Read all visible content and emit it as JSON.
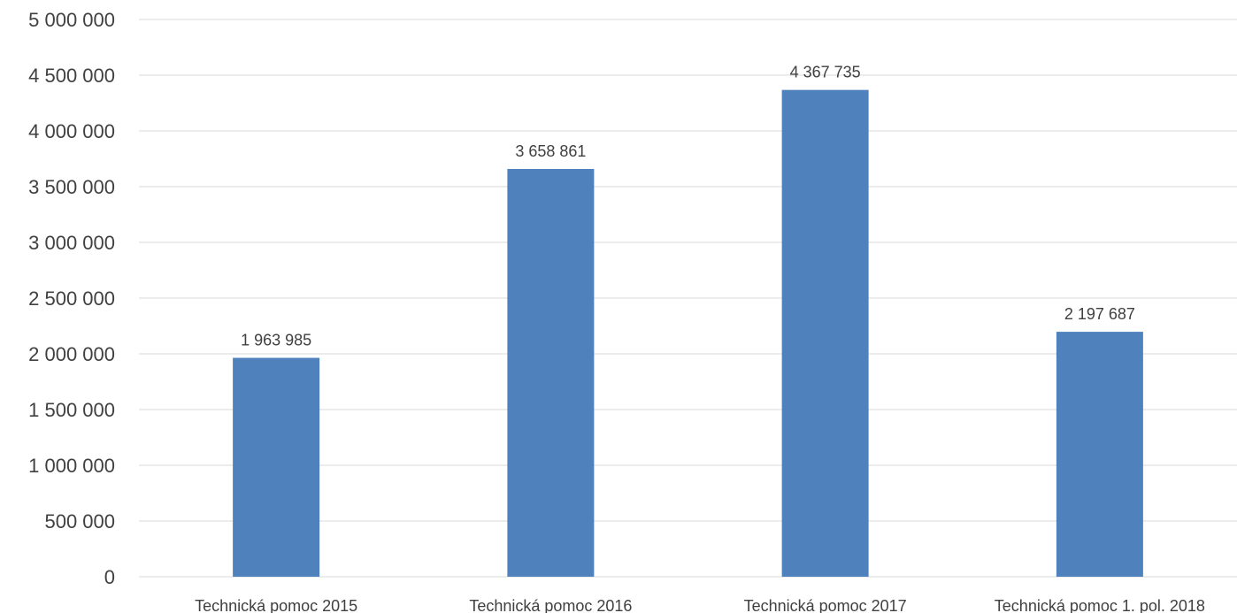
{
  "chart_data": {
    "type": "bar",
    "title": "",
    "xlabel": "",
    "ylabel": "",
    "categories": [
      "Technická pomoc 2015",
      "Technická pomoc 2016",
      "Technická pomoc 2017",
      "Technická pomoc 1. pol. 2018"
    ],
    "values": [
      1963985,
      3658861,
      4367735,
      2197687
    ],
    "value_labels": [
      "1 963 985",
      "3 658 861",
      "4 367 735",
      "2 197 687"
    ],
    "ylim": [
      0,
      5000000
    ],
    "ytick_values": [
      0,
      500000,
      1000000,
      1500000,
      2000000,
      2500000,
      3000000,
      3500000,
      4000000,
      4500000,
      5000000
    ],
    "ytick_labels": [
      "0",
      "500 000",
      "1 000 000",
      "1 500 000",
      "2 000 000",
      "2 500 000",
      "3 000 000",
      "3 500 000",
      "4 000 000",
      "4 500 000",
      "5 000 000"
    ],
    "grid": true,
    "legend": "none",
    "colors": {
      "bar": "#4f81bd",
      "grid": "#d9d9d9",
      "text": "#404040"
    }
  }
}
